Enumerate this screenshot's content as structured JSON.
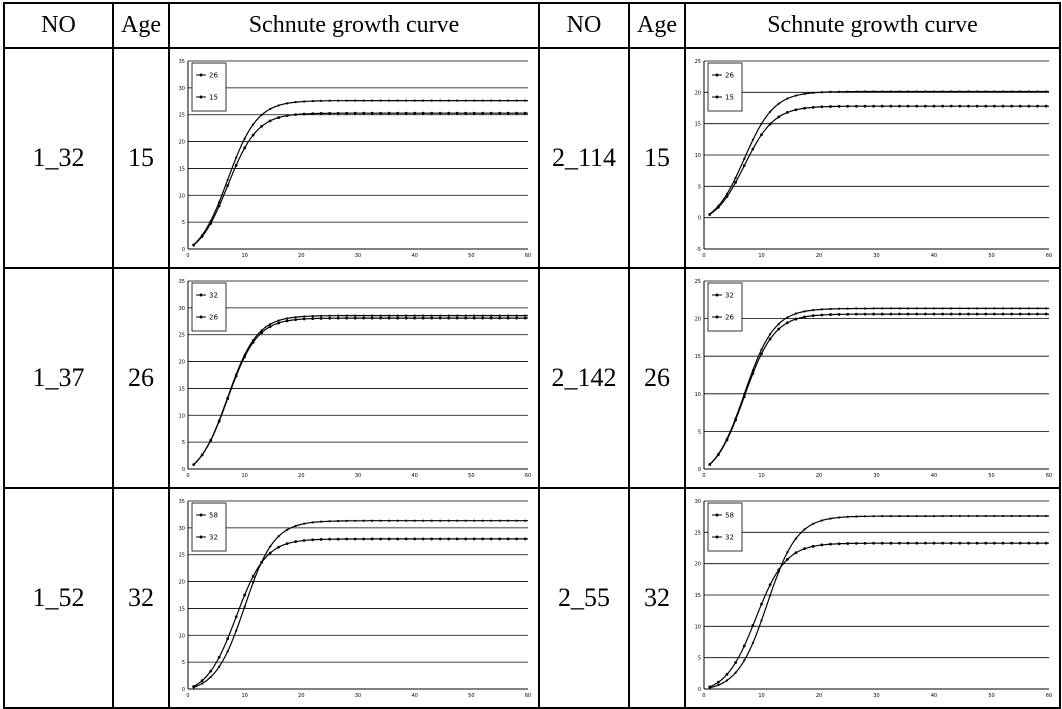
{
  "header": {
    "no_left": "NO",
    "age_left": "Age",
    "curve_left": "Schnute growth curve",
    "no_right": "NO",
    "age_right": "Age",
    "curve_right": "Schnute growth curve"
  },
  "rows": [
    {
      "left_no": "1_32",
      "left_age": "15",
      "right_no": "2_114",
      "right_age": "15"
    },
    {
      "left_no": "1_37",
      "left_age": "26",
      "right_no": "2_142",
      "right_age": "26"
    },
    {
      "left_no": "1_52",
      "left_age": "32",
      "right_no": "2_55",
      "right_age": "32"
    }
  ],
  "chart_data": [
    {
      "type": "line",
      "xlim": [
        0,
        60
      ],
      "ylim": [
        0,
        35
      ],
      "yticks": [
        0,
        5,
        10,
        15,
        20,
        25,
        30,
        35
      ],
      "series": [
        {
          "name": "26",
          "asymptote": 29.5,
          "mid": 7
        },
        {
          "name": "15",
          "asymptote": 27,
          "mid": 7
        }
      ]
    },
    {
      "type": "line",
      "xlim": [
        0,
        60
      ],
      "ylim": [
        -5,
        25
      ],
      "yticks": [
        -5,
        0,
        5,
        10,
        15,
        20,
        25
      ],
      "series": [
        {
          "name": "26",
          "asymptote": 21.5,
          "mid": 7
        },
        {
          "name": "15",
          "asymptote": 19,
          "mid": 7
        }
      ]
    },
    {
      "type": "line",
      "xlim": [
        0,
        60
      ],
      "ylim": [
        0,
        35
      ],
      "yticks": [
        0,
        5,
        10,
        15,
        20,
        25,
        30,
        35
      ],
      "series": [
        {
          "name": "32",
          "asymptote": 30.5,
          "mid": 7
        },
        {
          "name": "26",
          "asymptote": 30,
          "mid": 7
        }
      ]
    },
    {
      "type": "line",
      "xlim": [
        0,
        60
      ],
      "ylim": [
        0,
        25
      ],
      "yticks": [
        0,
        5,
        10,
        15,
        20,
        25
      ],
      "series": [
        {
          "name": "32",
          "asymptote": 22.8,
          "mid": 7
        },
        {
          "name": "26",
          "asymptote": 22,
          "mid": 7
        }
      ]
    },
    {
      "type": "line",
      "xlim": [
        0,
        60
      ],
      "ylim": [
        0,
        35
      ],
      "yticks": [
        0,
        5,
        10,
        15,
        20,
        25,
        30,
        35
      ],
      "series": [
        {
          "name": "58",
          "asymptote": 32,
          "mid": 10
        },
        {
          "name": "32",
          "asymptote": 29,
          "mid": 8.5
        }
      ]
    },
    {
      "type": "line",
      "xlim": [
        0,
        60
      ],
      "ylim": [
        0,
        30
      ],
      "yticks": [
        0,
        5,
        10,
        15,
        20,
        25,
        30
      ],
      "series": [
        {
          "name": "58",
          "asymptote": 28,
          "mid": 11
        },
        {
          "name": "32",
          "asymptote": 24,
          "mid": 9
        }
      ]
    }
  ]
}
